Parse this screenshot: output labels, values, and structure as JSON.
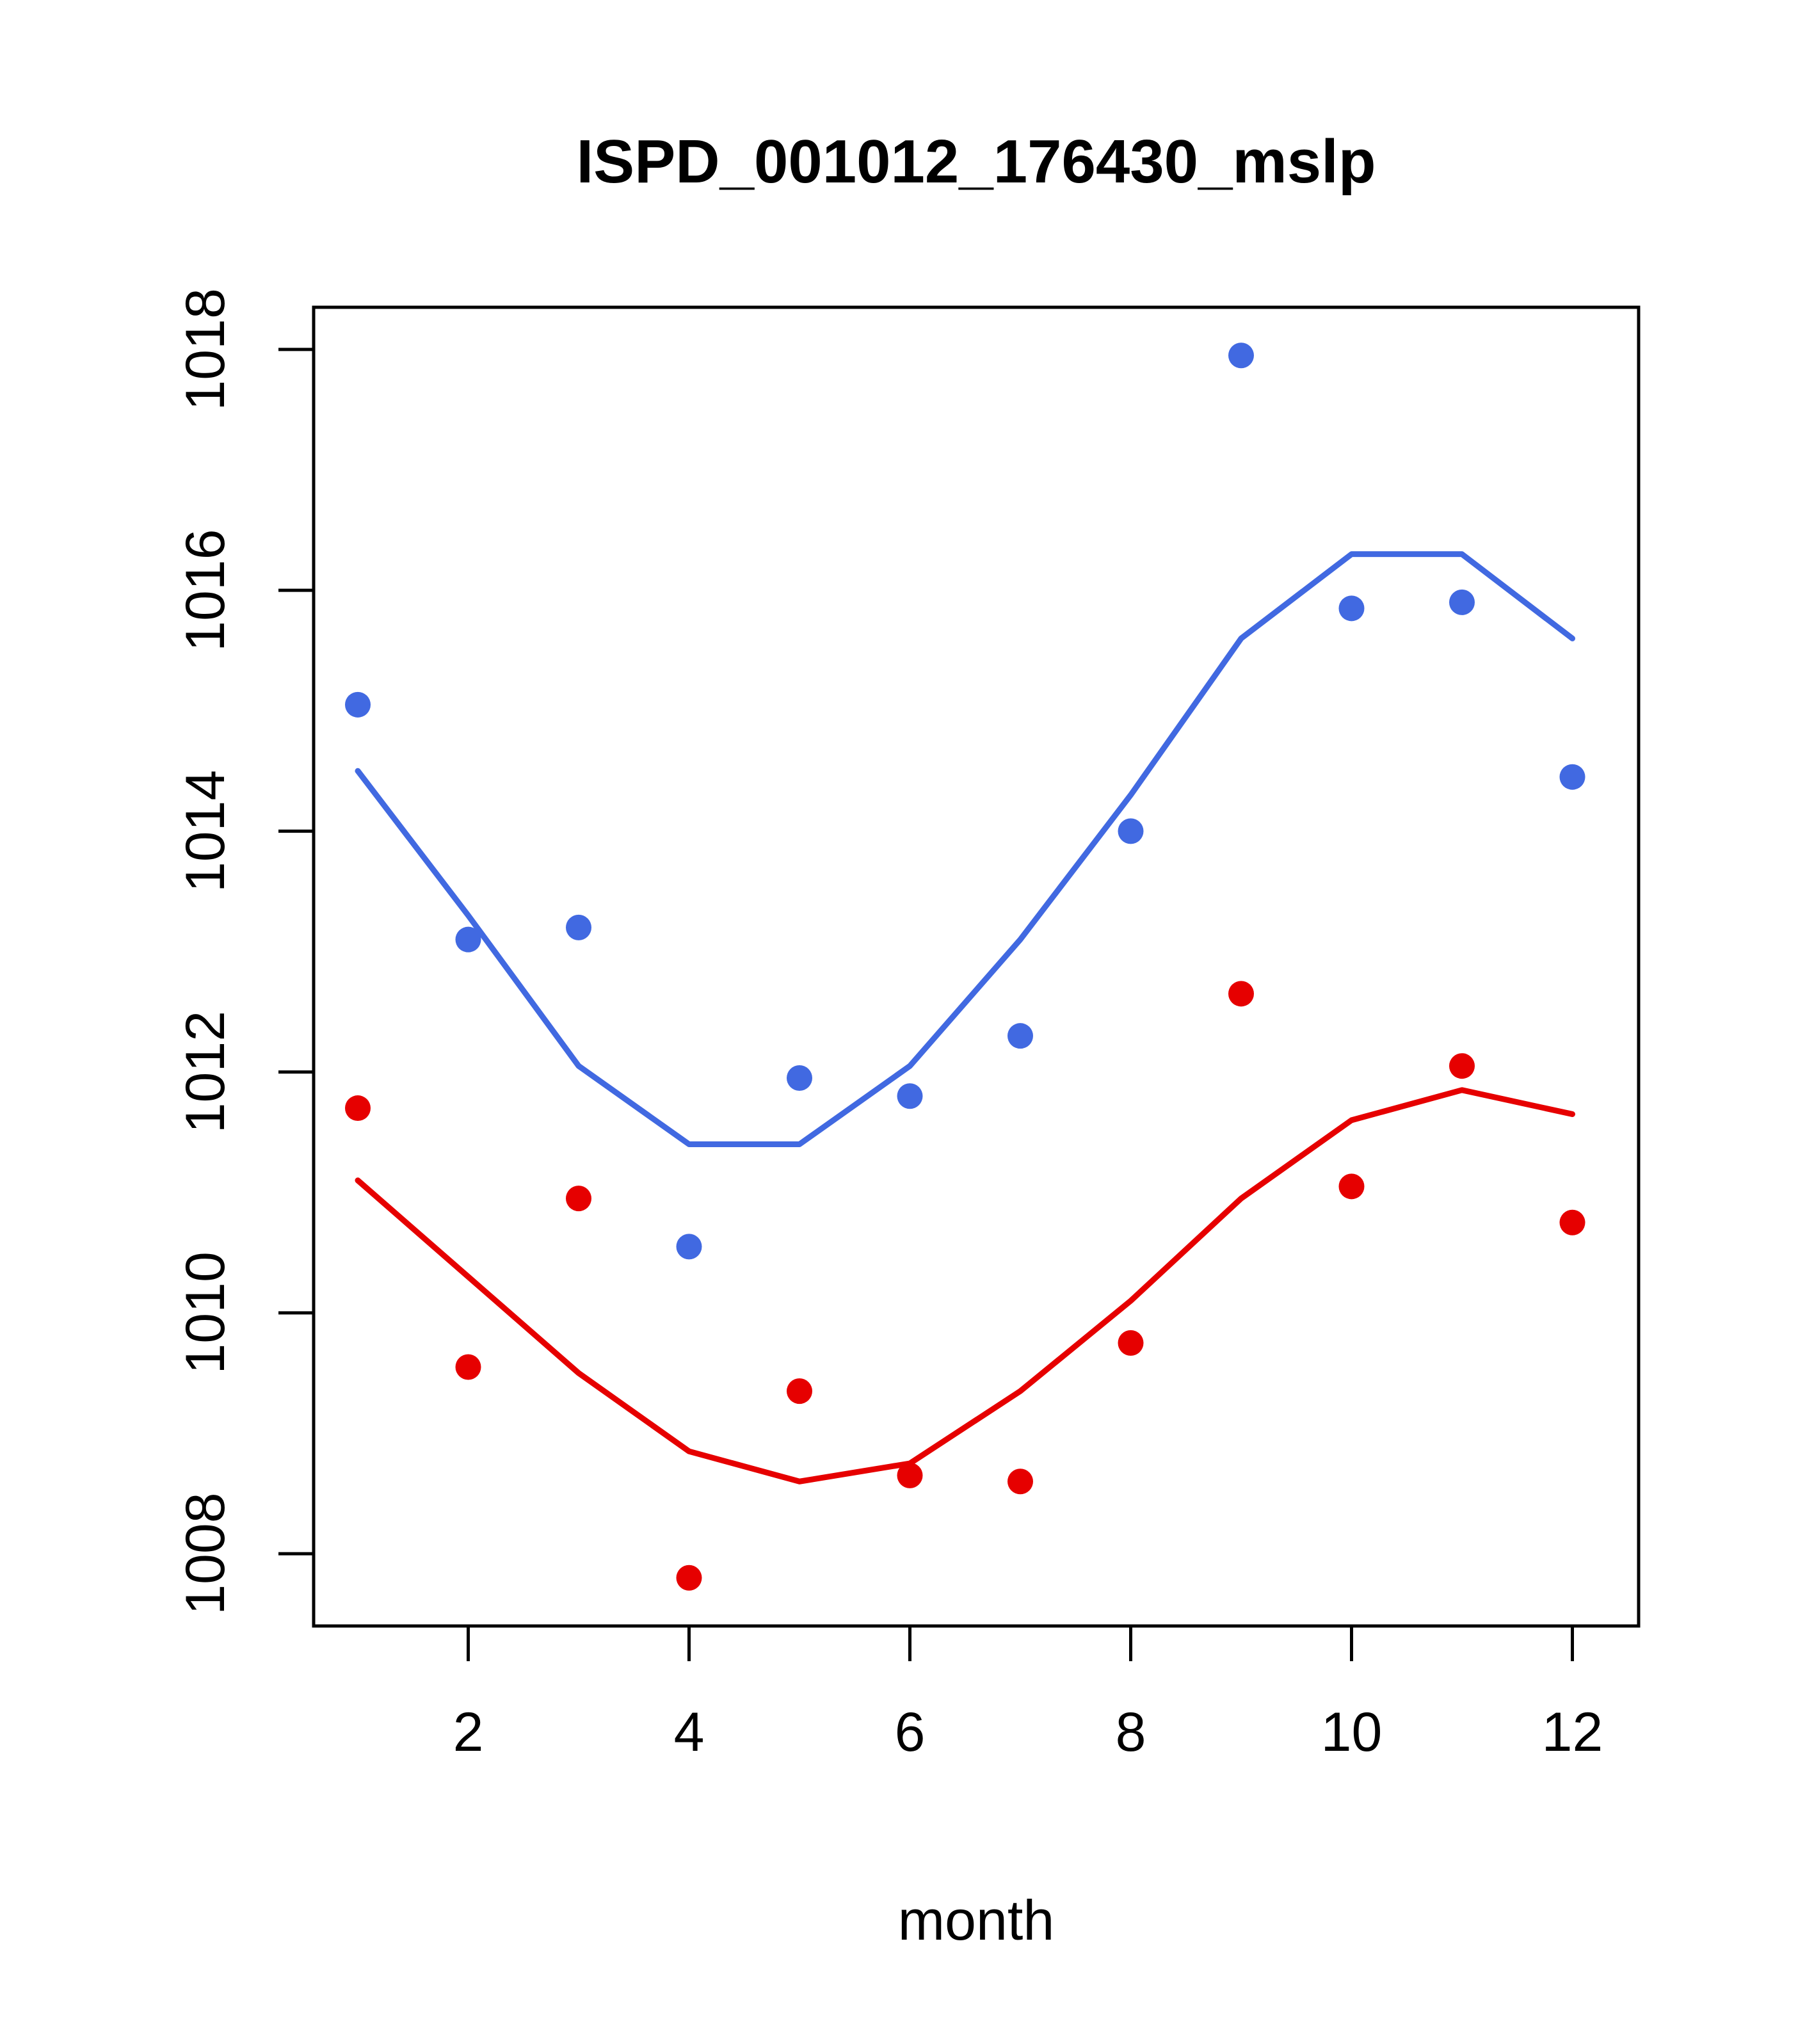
{
  "chart_data": {
    "type": "scatter",
    "title": "ISPD_001012_176430_mslp",
    "xlabel": "month",
    "ylabel": "",
    "grid": false,
    "legend": "none",
    "x": [
      1,
      2,
      3,
      4,
      5,
      6,
      7,
      8,
      9,
      10,
      11,
      12
    ],
    "xticks": [
      2,
      4,
      6,
      8,
      10,
      12
    ],
    "yticks": [
      1008,
      1010,
      1012,
      1014,
      1016,
      1018
    ],
    "xlim": [
      0.6,
      12.6
    ],
    "ylim": [
      1007.4,
      1018.35
    ],
    "series": [
      {
        "name": "blue-series",
        "color": "#4169E1",
        "style": "points-with-smooth-line",
        "points": [
          1015.05,
          1013.1,
          1013.2,
          1010.55,
          1011.95,
          1011.8,
          1012.3,
          1014.0,
          1017.95,
          1015.85,
          1015.9,
          1014.45
        ],
        "line": [
          1014.5,
          1013.3,
          1012.05,
          1011.4,
          1011.4,
          1012.05,
          1013.1,
          1014.3,
          1015.6,
          1016.3,
          1016.3,
          1015.6
        ]
      },
      {
        "name": "red-series",
        "color": "#E60000",
        "style": "points-with-smooth-line",
        "points": [
          1011.7,
          1009.55,
          1010.95,
          1007.8,
          1009.35,
          1008.65,
          1008.6,
          1009.75,
          1012.65,
          1011.05,
          1012.05,
          1010.75
        ],
        "line": [
          1011.1,
          1010.3,
          1009.5,
          1008.85,
          1008.6,
          1008.75,
          1009.35,
          1010.1,
          1010.95,
          1011.6,
          1011.85,
          1011.65
        ]
      }
    ]
  }
}
